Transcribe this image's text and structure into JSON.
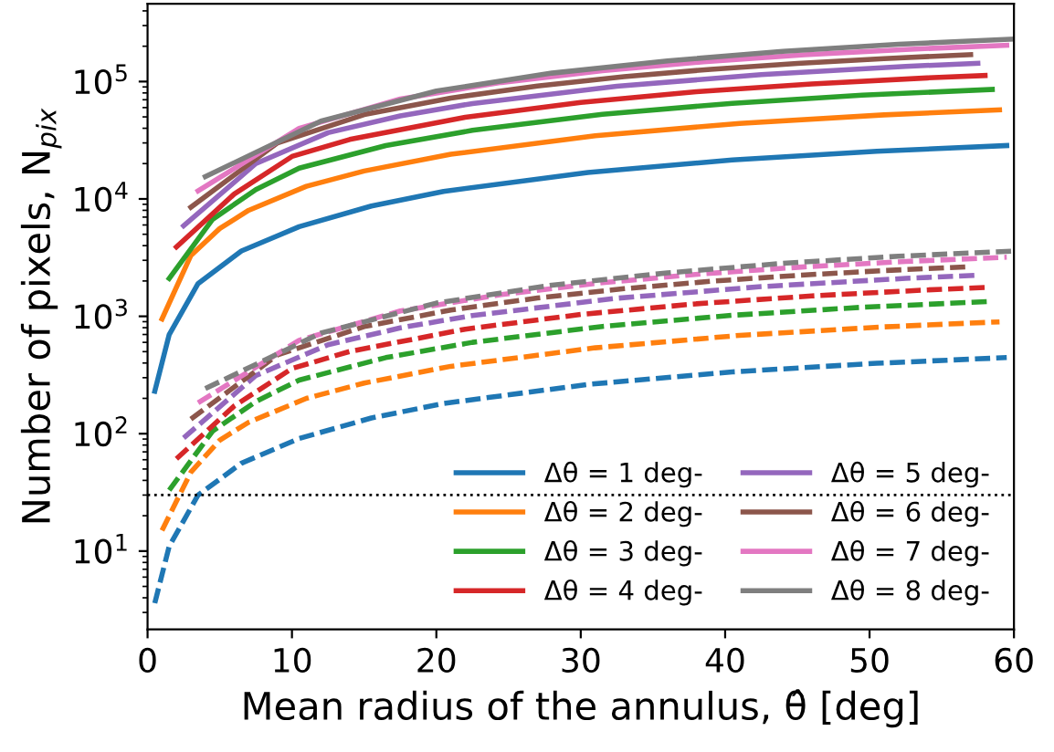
{
  "chart_data": {
    "type": "line",
    "xlabel": "Mean radius of the annulus, θ̂ [deg]",
    "ylabel": "Number of pixels, N$_{pix}$",
    "log": "y",
    "xlim": [
      0,
      60
    ],
    "xticks": [
      0,
      10,
      20,
      30,
      40,
      50,
      60
    ],
    "ylim": [
      2.15,
      460000
    ],
    "yticks": [
      {
        "value": 10,
        "label": "10$^{1}$"
      },
      {
        "value": 100,
        "label": "10$^{2}$"
      },
      {
        "value": 1000,
        "label": "10$^{3}$"
      },
      {
        "value": 10000,
        "label": "10$^{4}$"
      },
      {
        "value": 100000,
        "label": "10$^{5}$"
      }
    ],
    "grid": false,
    "legend": "bottom right",
    "marker": "none",
    "ref_lines": [
      {
        "axis": "y",
        "value": 30,
        "color": "#000000",
        "line_style": "dotted"
      }
    ],
    "series": [
      {
        "name": "Δθ = 1 deg-",
        "color": "#1f77b4",
        "line_style": "solid",
        "x": [
          0.5,
          1.5,
          3.5,
          6.5,
          10.5,
          15.5,
          20.5,
          30.5,
          40.5,
          50.5,
          59.5
        ],
        "values": [
          230,
          700,
          1900,
          3600,
          5800,
          8700,
          11600,
          16800,
          21500,
          25500,
          28500
        ]
      },
      {
        "name": "Δθ = 2 deg-",
        "color": "#ff7f0e",
        "line_style": "solid",
        "x": [
          1,
          3,
          5,
          7,
          11,
          15,
          21,
          31,
          41,
          51,
          59
        ],
        "values": [
          950,
          3300,
          5600,
          8000,
          12800,
          17300,
          24000,
          34500,
          44000,
          52000,
          57400
        ]
      },
      {
        "name": "Δθ = 3 deg-",
        "color": "#2ca02c",
        "line_style": "solid",
        "x": [
          1.5,
          4.5,
          7.5,
          10.5,
          16.5,
          22.5,
          31.5,
          40.5,
          49.5,
          58.5
        ],
        "values": [
          2100,
          6700,
          12000,
          18300,
          28500,
          38400,
          52500,
          65300,
          76500,
          85700
        ]
      },
      {
        "name": "Δθ = 4 deg-",
        "color": "#d62728",
        "line_style": "solid",
        "x": [
          2,
          6,
          10,
          14,
          22,
          30,
          38,
          46,
          54,
          58
        ],
        "values": [
          3900,
          11000,
          23000,
          32100,
          49700,
          66400,
          81800,
          95500,
          107400,
          112600
        ]
      },
      {
        "name": "Δθ = 5 deg-",
        "color": "#9467bd",
        "line_style": "solid",
        "x": [
          2.5,
          7.5,
          12.5,
          17.5,
          22.5,
          32.5,
          42.5,
          52.5,
          57.5
        ],
        "values": [
          5900,
          20000,
          36700,
          51000,
          65000,
          91200,
          114600,
          134700,
          143200
        ]
      },
      {
        "name": "Δθ = 6 deg-",
        "color": "#8c564b",
        "line_style": "solid",
        "x": [
          3,
          9,
          15,
          21,
          27,
          33,
          39,
          45,
          51,
          57
        ],
        "values": [
          8500,
          30000,
          52300,
          72400,
          91700,
          110000,
          127200,
          142900,
          157000,
          169500
        ]
      },
      {
        "name": "Δθ = 7 deg-",
        "color": "#e377c2",
        "line_style": "solid",
        "x": [
          3.5,
          10.5,
          17.5,
          24.5,
          31.5,
          38.5,
          45.5,
          52.5,
          59.5
        ],
        "values": [
          11700,
          40000,
          71100,
          98200,
          123700,
          147400,
          168900,
          187800,
          204000
        ]
      },
      {
        "name": "Δθ = 8 deg-",
        "color": "#7f7f7f",
        "line_style": "solid",
        "x": [
          4,
          12,
          20,
          28,
          36,
          44,
          52,
          60
        ],
        "values": [
          15500,
          46000,
          83000,
          118000,
          150000,
          181000,
          208000,
          230000
        ]
      },
      {
        "color": "#1f77b4",
        "line_style": "dashed",
        "x": [
          0.5,
          1.5,
          3.5,
          6.5,
          10.5,
          15.5,
          20.5,
          30.5,
          40.5,
          50.5,
          59.5
        ],
        "values": [
          3.6,
          11,
          30,
          56,
          91,
          136,
          181,
          263,
          336,
          398,
          445
        ]
      },
      {
        "color": "#ff7f0e",
        "line_style": "dashed",
        "x": [
          1,
          3,
          5,
          7,
          11,
          15,
          21,
          31,
          41,
          51,
          59
        ],
        "values": [
          15,
          47,
          88,
          125,
          200,
          270,
          375,
          539,
          688,
          813,
          897
        ]
      },
      {
        "color": "#2ca02c",
        "line_style": "dashed",
        "x": [
          1.5,
          4.5,
          7.5,
          10.5,
          16.5,
          22.5,
          31.5,
          40.5,
          49.5,
          58.5
        ],
        "values": [
          33,
          105,
          188,
          286,
          445,
          600,
          820,
          1020,
          1195,
          1340
        ]
      },
      {
        "color": "#d62728",
        "line_style": "dashed",
        "x": [
          2,
          6,
          10,
          14,
          22,
          30,
          38,
          46,
          54,
          58
        ],
        "values": [
          61,
          172,
          359,
          502,
          777,
          1038,
          1278,
          1492,
          1678,
          1760
        ]
      },
      {
        "color": "#9467bd",
        "line_style": "dashed",
        "x": [
          2.5,
          7.5,
          12.5,
          17.5,
          22.5,
          32.5,
          42.5,
          52.5,
          57.5
        ],
        "values": [
          92,
          313,
          573,
          797,
          1016,
          1425,
          1790,
          2105,
          2238
        ]
      },
      {
        "color": "#8c564b",
        "line_style": "dashed",
        "x": [
          3,
          9,
          15,
          21,
          27,
          33,
          39,
          45,
          51,
          57
        ],
        "values": [
          133,
          469,
          817,
          1131,
          1433,
          1719,
          1988,
          2233,
          2453,
          2648
        ]
      },
      {
        "color": "#e377c2",
        "line_style": "dashed",
        "x": [
          3.5,
          10.5,
          17.5,
          24.5,
          31.5,
          38.5,
          45.5,
          52.5,
          59.5
        ],
        "values": [
          183,
          625,
          1111,
          1534,
          1933,
          2303,
          2639,
          2934,
          3188
        ]
      },
      {
        "color": "#7f7f7f",
        "line_style": "dashed",
        "x": [
          4,
          12,
          20,
          28,
          36,
          44,
          52,
          60
        ],
        "values": [
          242,
          719,
          1297,
          1844,
          2344,
          2828,
          3250,
          3594
        ]
      }
    ]
  }
}
